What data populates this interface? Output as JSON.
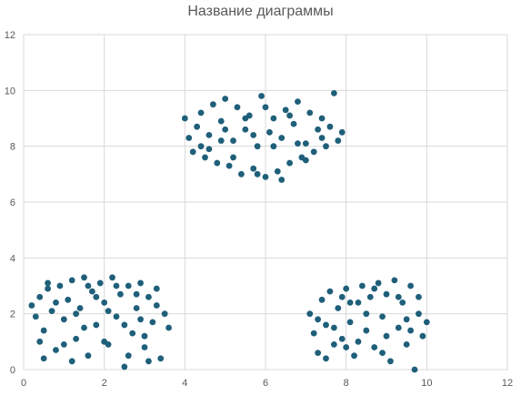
{
  "chart_data": {
    "type": "scatter",
    "title": "Название диаграммы",
    "xlabel": "",
    "ylabel": "",
    "xlim": [
      0,
      12
    ],
    "ylim": [
      0,
      12
    ],
    "x_ticks": [
      0,
      2,
      4,
      6,
      8,
      10,
      12
    ],
    "y_ticks": [
      0,
      2,
      4,
      6,
      8,
      10,
      12
    ],
    "grid": true,
    "legend": "none",
    "point_color": "#1f5f7a",
    "series": [
      {
        "values": [
          [
            0.2,
            2.3
          ],
          [
            0.3,
            1.9
          ],
          [
            0.4,
            2.6
          ],
          [
            0.5,
            1.4
          ],
          [
            0.6,
            2.9
          ],
          [
            0.7,
            2.1
          ],
          [
            0.8,
            0.7
          ],
          [
            0.9,
            3.0
          ],
          [
            1.0,
            1.8
          ],
          [
            1.1,
            2.5
          ],
          [
            1.2,
            3.2
          ],
          [
            1.3,
            1.1
          ],
          [
            1.4,
            2.2
          ],
          [
            1.5,
            3.3
          ],
          [
            1.6,
            0.5
          ],
          [
            1.7,
            2.8
          ],
          [
            1.8,
            1.6
          ],
          [
            1.9,
            3.1
          ],
          [
            2.0,
            2.4
          ],
          [
            2.1,
            0.9
          ],
          [
            2.2,
            3.3
          ],
          [
            2.3,
            1.9
          ],
          [
            2.4,
            2.7
          ],
          [
            2.5,
            0.1
          ],
          [
            2.6,
            3.0
          ],
          [
            2.7,
            1.3
          ],
          [
            2.8,
            2.2
          ],
          [
            2.9,
            3.1
          ],
          [
            3.0,
            0.8
          ],
          [
            3.1,
            2.6
          ],
          [
            3.2,
            1.7
          ],
          [
            3.3,
            2.9
          ],
          [
            3.4,
            0.4
          ],
          [
            3.5,
            2.0
          ],
          [
            3.6,
            1.5
          ],
          [
            0.5,
            0.4
          ],
          [
            1.0,
            0.9
          ],
          [
            1.5,
            1.5
          ],
          [
            2.0,
            1.0
          ],
          [
            2.5,
            1.6
          ],
          [
            3.0,
            1.2
          ],
          [
            0.8,
            2.4
          ],
          [
            1.3,
            2.0
          ],
          [
            1.8,
            2.6
          ],
          [
            2.3,
            3.0
          ],
          [
            2.8,
            2.7
          ],
          [
            3.3,
            2.3
          ],
          [
            0.4,
            1.0
          ],
          [
            1.2,
            0.3
          ],
          [
            2.6,
            0.5
          ],
          [
            3.1,
            0.3
          ],
          [
            0.6,
            3.1
          ],
          [
            1.6,
            3.0
          ],
          [
            2.1,
            2.1
          ],
          [
            2.9,
            1.8
          ],
          [
            7.1,
            2.0
          ],
          [
            7.2,
            1.3
          ],
          [
            7.3,
            0.6
          ],
          [
            7.4,
            2.5
          ],
          [
            7.5,
            1.6
          ],
          [
            7.6,
            2.8
          ],
          [
            7.7,
            0.9
          ],
          [
            7.8,
            2.2
          ],
          [
            7.9,
            1.1
          ],
          [
            8.0,
            2.9
          ],
          [
            8.1,
            1.7
          ],
          [
            8.2,
            0.5
          ],
          [
            8.3,
            2.4
          ],
          [
            8.4,
            3.0
          ],
          [
            8.5,
            1.4
          ],
          [
            8.6,
            2.6
          ],
          [
            8.7,
            0.8
          ],
          [
            8.8,
            3.1
          ],
          [
            8.9,
            1.9
          ],
          [
            9.0,
            2.7
          ],
          [
            9.1,
            0.3
          ],
          [
            9.2,
            3.2
          ],
          [
            9.3,
            1.5
          ],
          [
            9.4,
            2.4
          ],
          [
            9.5,
            0.9
          ],
          [
            9.6,
            3.0
          ],
          [
            9.7,
            0.0
          ],
          [
            9.8,
            2.0
          ],
          [
            9.9,
            1.2
          ],
          [
            10.0,
            1.7
          ],
          [
            7.5,
            0.4
          ],
          [
            8.0,
            0.8
          ],
          [
            8.5,
            2.0
          ],
          [
            9.0,
            1.2
          ],
          [
            9.5,
            1.8
          ],
          [
            7.9,
            2.6
          ],
          [
            8.7,
            2.9
          ],
          [
            9.3,
            2.6
          ],
          [
            8.3,
            1.0
          ],
          [
            9.8,
            2.6
          ],
          [
            7.3,
            1.8
          ],
          [
            8.1,
            2.4
          ],
          [
            8.9,
            0.6
          ],
          [
            9.6,
            1.4
          ],
          [
            7.7,
            1.5
          ],
          [
            4.0,
            9.0
          ],
          [
            4.1,
            8.3
          ],
          [
            4.2,
            7.8
          ],
          [
            4.3,
            8.7
          ],
          [
            4.4,
            9.2
          ],
          [
            4.5,
            7.6
          ],
          [
            4.6,
            8.4
          ],
          [
            4.7,
            9.5
          ],
          [
            4.8,
            7.4
          ],
          [
            4.9,
            8.9
          ],
          [
            5.0,
            9.7
          ],
          [
            5.1,
            7.3
          ],
          [
            5.2,
            8.2
          ],
          [
            5.3,
            9.4
          ],
          [
            5.4,
            7.0
          ],
          [
            5.5,
            8.6
          ],
          [
            5.6,
            9.1
          ],
          [
            5.7,
            7.2
          ],
          [
            5.8,
            8.0
          ],
          [
            5.9,
            9.8
          ],
          [
            6.0,
            6.9
          ],
          [
            6.1,
            8.5
          ],
          [
            6.2,
            9.0
          ],
          [
            6.3,
            7.1
          ],
          [
            6.4,
            8.3
          ],
          [
            6.5,
            9.3
          ],
          [
            6.6,
            7.4
          ],
          [
            6.7,
            8.8
          ],
          [
            6.8,
            9.6
          ],
          [
            6.9,
            7.6
          ],
          [
            7.0,
            8.1
          ],
          [
            7.1,
            9.2
          ],
          [
            7.2,
            7.8
          ],
          [
            7.3,
            8.6
          ],
          [
            7.4,
            9.0
          ],
          [
            7.5,
            8.0
          ],
          [
            7.6,
            8.7
          ],
          [
            7.7,
            9.9
          ],
          [
            7.8,
            8.2
          ],
          [
            7.9,
            8.5
          ],
          [
            4.6,
            7.9
          ],
          [
            5.2,
            7.6
          ],
          [
            5.8,
            7.0
          ],
          [
            6.4,
            6.8
          ],
          [
            7.0,
            7.5
          ],
          [
            5.5,
            9.0
          ],
          [
            6.0,
            9.4
          ],
          [
            6.6,
            9.1
          ],
          [
            4.9,
            8.2
          ],
          [
            6.2,
            8.0
          ],
          [
            5.0,
            8.6
          ],
          [
            6.8,
            8.1
          ],
          [
            4.4,
            8.0
          ],
          [
            7.4,
            8.3
          ],
          [
            5.7,
            8.4
          ]
        ]
      }
    ]
  }
}
